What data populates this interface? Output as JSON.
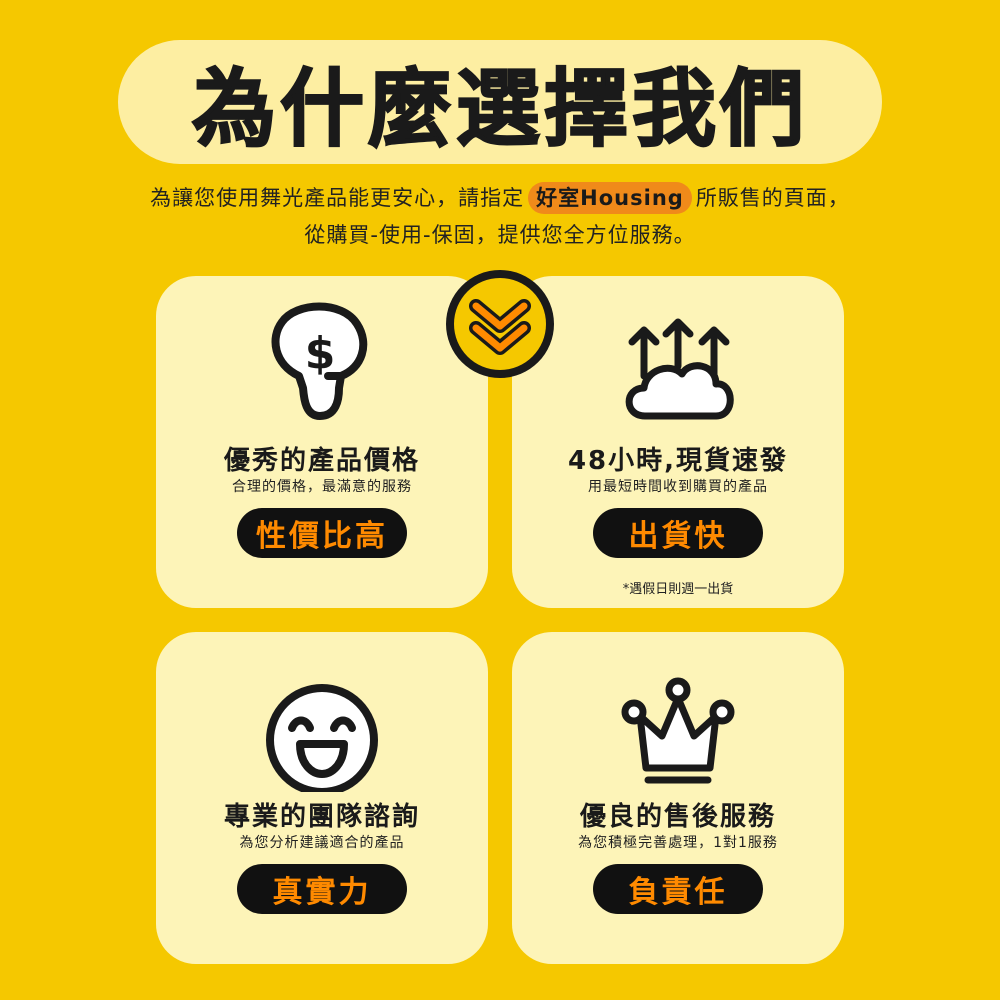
{
  "header": {
    "title": "為什麼選擇我們",
    "subtitle_line1_before": "為讓您使用舞光產品能更安心，請指定",
    "brand": "好室Housing",
    "subtitle_line1_after": "所販售的頁面，",
    "subtitle_line2": "從購買-使用-保固，提供您全方位服務。"
  },
  "colors": {
    "background": "#F5C800",
    "card": "#FDF4B8",
    "accent": "#FF8A00",
    "tag_background": "#111111"
  },
  "cards": [
    {
      "icon": "lightbulb-dollar-icon",
      "title": "優秀的產品價格",
      "desc": "合理的價格，最滿意的服務",
      "tag": "性價比高"
    },
    {
      "icon": "cloud-arrows-icon",
      "title": "48小時,現貨速發",
      "desc": "用最短時間收到購買的產品",
      "tag": "出貨快",
      "note": "*遇假日則週一出貨"
    },
    {
      "icon": "smiley-face-icon",
      "title": "專業的團隊諮詢",
      "desc": "為您分析建議適合的產品",
      "tag": "真實力"
    },
    {
      "icon": "crown-icon",
      "title": "優良的售後服務",
      "desc": "為您積極完善處理，1對1服務",
      "tag": "負責任"
    }
  ],
  "badge": {
    "icon": "double-chevron-down-icon"
  }
}
